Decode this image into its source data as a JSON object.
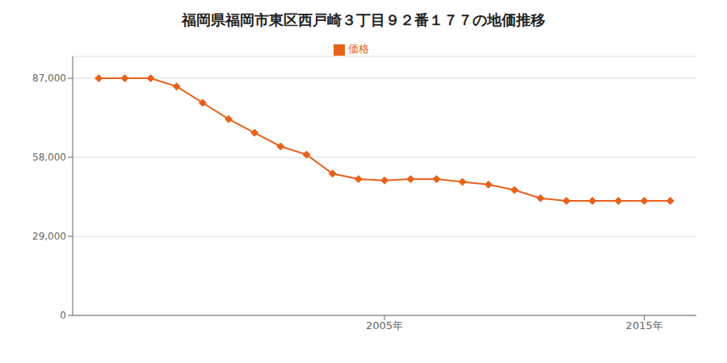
{
  "chart_data": {
    "type": "line",
    "title": "福岡県福岡市東区西戸崎３丁目９２番１７７の地価推移",
    "x": [
      1994,
      1995,
      1996,
      1997,
      1998,
      1999,
      2000,
      2001,
      2002,
      2003,
      2004,
      2005,
      2006,
      2007,
      2008,
      2009,
      2010,
      2011,
      2012,
      2013,
      2014,
      2015,
      2016
    ],
    "series": [
      {
        "name": "価格",
        "color": "#e8611a",
        "marker": "diamond",
        "values": [
          87000,
          87000,
          87000,
          84000,
          78000,
          72000,
          67000,
          62000,
          59000,
          52000,
          50000,
          49500,
          50000,
          50000,
          49000,
          48000,
          46000,
          43000,
          42000,
          42000,
          42000,
          42000,
          42000
        ]
      }
    ],
    "xlim": [
      1993,
      2017
    ],
    "xticks": [
      {
        "value": 2005,
        "label": "2005年"
      },
      {
        "value": 2015,
        "label": "2015年"
      }
    ],
    "ylim": [
      0,
      95000
    ],
    "yticks": [
      0,
      {
        "value": 29000,
        "label": "29,000"
      },
      {
        "value": 58000,
        "label": "58,000"
      },
      {
        "value": 87000,
        "label": "87,000"
      }
    ],
    "grid": true,
    "legend": "top"
  }
}
